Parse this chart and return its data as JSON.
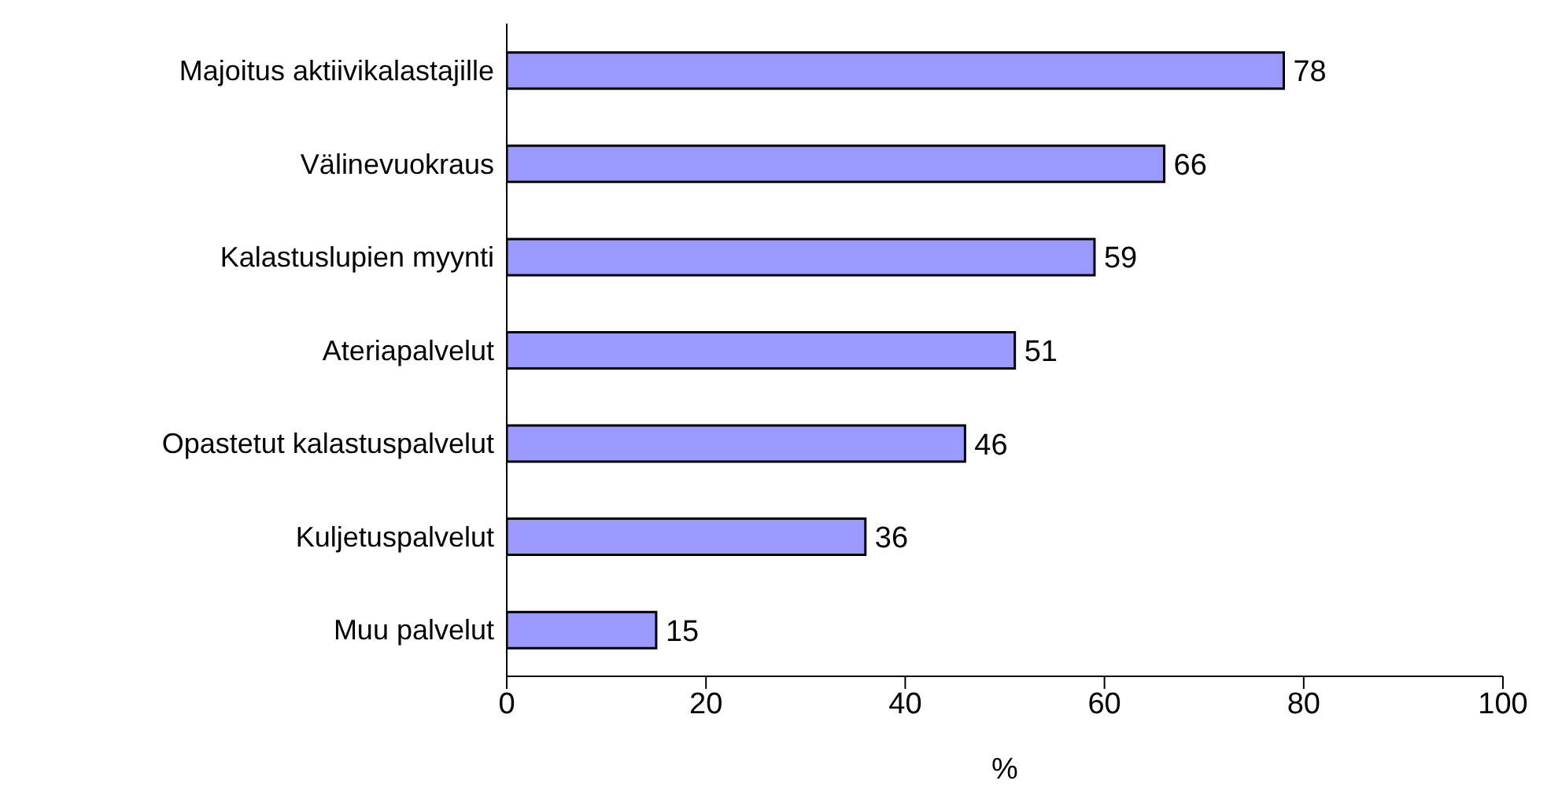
{
  "chart_data": {
    "type": "bar",
    "orientation": "horizontal",
    "xlabel": "%",
    "categories": [
      "Majoitus aktiivikalastajille",
      "Välinevuokraus",
      "Kalastuslupien myynti",
      "Ateriapalvelut",
      "Opastetut kalastuspalvelut",
      "Kuljetuspalvelut",
      "Muu palvelut"
    ],
    "values": [
      78,
      66,
      59,
      51,
      46,
      36,
      15
    ],
    "color": "#9999ff",
    "xlim": [
      0,
      100
    ],
    "xticks": [
      0,
      20,
      40,
      60,
      80,
      100
    ],
    "data_labels": true,
    "grid": false,
    "legend": false
  }
}
